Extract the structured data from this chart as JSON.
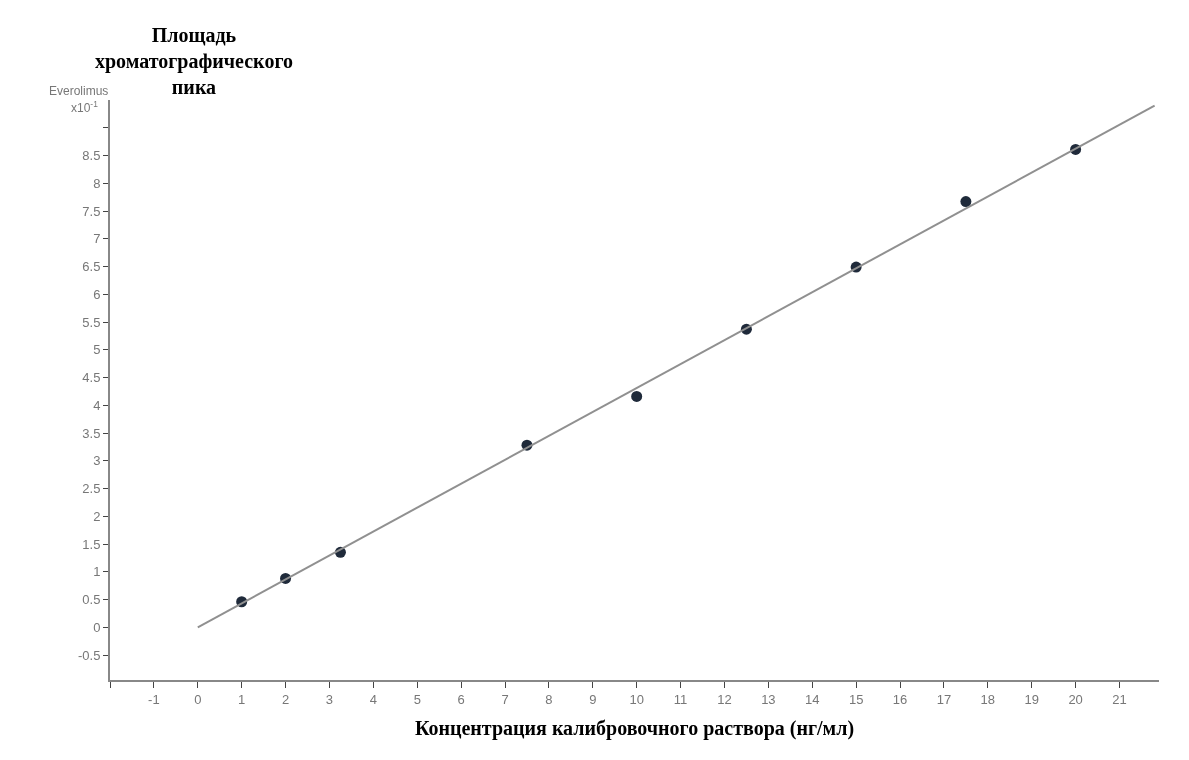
{
  "chart_data": {
    "type": "scatter",
    "ylabel": "Площадь хроматографического пика",
    "xlabel": "Концентрация калибровочного раствора (нг/мл)",
    "annotations": [
      "Everolimus",
      "x10$^{-1}$"
    ],
    "series": [
      {
        "color": "#1f2a3a",
        "marker": "circle",
        "x": [
          1,
          2,
          3.25,
          7.5,
          10,
          12.5,
          15,
          17.5,
          20
        ],
        "values": [
          0.46,
          0.88,
          1.35,
          3.28,
          4.16,
          5.37,
          6.49,
          7.67,
          8.61
        ]
      },
      {
        "type": "line",
        "color": "#909090",
        "marker": "none",
        "x": [
          0,
          21.8
        ],
        "values": [
          0,
          9.4
        ]
      }
    ],
    "xlim": [
      -2,
      21.9
    ],
    "ylim": [
      -0.95,
      9.5
    ],
    "xticks": [
      {
        "value": -2,
        "label": null
      },
      -1,
      0,
      1,
      2,
      3,
      4,
      5,
      6,
      7,
      8,
      9,
      10,
      11,
      12,
      13,
      14,
      15,
      16,
      17,
      18,
      19,
      20,
      21
    ],
    "yticks": [
      -0.5,
      0,
      0.5,
      1,
      1.5,
      2,
      2.5,
      3,
      3.5,
      4,
      4.5,
      5,
      5.5,
      6,
      6.5,
      7,
      7.5,
      8,
      8.5,
      {
        "value": 9,
        "label": null
      }
    ],
    "line_style": "solid"
  }
}
